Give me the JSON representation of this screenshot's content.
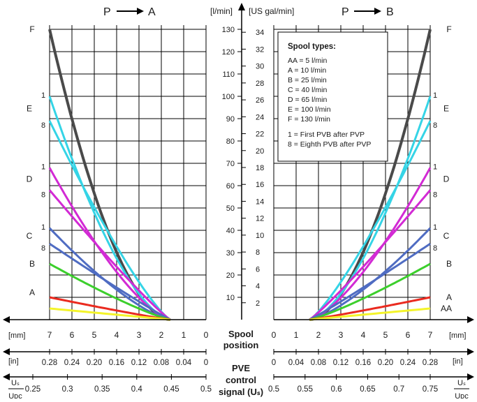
{
  "headers": {
    "left_title_from": "P",
    "left_title_to": "A",
    "right_title_from": "P",
    "right_title_to": "B",
    "unit_lmin": "[l/min]",
    "unit_usgal": "[US gal/min]"
  },
  "legend": {
    "title": "Spool types:",
    "lines": [
      "AA = 5 l/min",
      "A = 10 l/min",
      "B = 25 l/min",
      "C = 40 l/min",
      "D = 65 l/min",
      "E = 100 l/min",
      "F = 130 l/min",
      "1 = First PVB after PVP",
      "8 = Eighth PVB after PVP"
    ]
  },
  "bottom": {
    "mm_unit": "[mm]",
    "in_unit": "[in]",
    "spool_label": [
      "Spool",
      "position"
    ],
    "pve_label": [
      "PVE",
      "control",
      "signal (Uₛ)"
    ],
    "ratio_num": "Uₛ",
    "ratio_den": "Uᴅᴄ",
    "left_mm_ticks": [
      "7",
      "6",
      "5",
      "4",
      "3",
      "2",
      "1",
      "0"
    ],
    "right_mm_ticks": [
      "0",
      "1",
      "2",
      "3",
      "4",
      "5",
      "6",
      "7"
    ],
    "left_in_ticks": [
      "0.28",
      "0.24",
      "0.20",
      "0.16",
      "0.12",
      "0.08",
      "0.04",
      "0"
    ],
    "right_in_ticks": [
      "0",
      "0.04",
      "0.08",
      "0.12",
      "0.16",
      "0.20",
      "0.24",
      "0.28"
    ],
    "left_ratio_ticks": [
      "0.25",
      "0.3",
      "0.35",
      "0.4",
      "0.45",
      "0.5"
    ],
    "right_ratio_ticks": [
      "0.5",
      "0.55",
      "0.6",
      "0.65",
      "0.7",
      "0.75"
    ]
  },
  "chart_data": {
    "type": "line",
    "title": "",
    "xlabel": "Spool position [mm]",
    "ylabel": "[l/min]",
    "ylim": [
      0,
      135
    ],
    "y_ticks_lmin": [
      10,
      20,
      30,
      40,
      50,
      60,
      70,
      80,
      90,
      100,
      110,
      120,
      130
    ],
    "y_ticks_usgal": [
      2,
      4,
      6,
      8,
      10,
      12,
      14,
      16,
      18,
      20,
      22,
      24,
      26,
      28,
      30,
      32,
      34
    ],
    "panels": [
      {
        "name": "P → A",
        "x_range_mm": [
          7,
          0
        ]
      },
      {
        "name": "P → B",
        "x_range_mm": [
          0,
          7
        ]
      }
    ],
    "series": [
      {
        "name": "F",
        "color": "#4a4a4a",
        "flow_at_7mm": 130,
        "start_mm": 1.6,
        "labels_left": [
          "F"
        ],
        "labels_right": [
          "F"
        ]
      },
      {
        "name": "E",
        "color": "#35d4e6",
        "band": [
          89,
          100
        ],
        "start_mm": 1.6,
        "labels_left": [
          "1",
          "E",
          "8"
        ],
        "labels_right": [
          "1",
          "E",
          "8"
        ]
      },
      {
        "name": "D",
        "color": "#d22ad4",
        "band": [
          58,
          68
        ],
        "start_mm": 1.6,
        "labels_left": [
          "1",
          "D",
          "8"
        ],
        "labels_right": [
          "1",
          "D",
          "8"
        ]
      },
      {
        "name": "C",
        "color": "#4f6cc2",
        "band": [
          34,
          41
        ],
        "start_mm": 1.6,
        "labels_left": [
          "1",
          "C",
          "8"
        ],
        "labels_right": [
          "1",
          "C",
          "8"
        ]
      },
      {
        "name": "B",
        "color": "#3ccf2c",
        "flow_at_7mm": 25,
        "start_mm": 1.6,
        "labels_left": [
          "B"
        ],
        "labels_right": [
          "B"
        ]
      },
      {
        "name": "A",
        "color": "#ea2a1f",
        "flow_at_7mm": 10,
        "start_mm": 1.6,
        "labels_left": [
          "A"
        ],
        "labels_right": [
          "A"
        ]
      },
      {
        "name": "AA",
        "color": "#f4f42a",
        "flow_at_7mm": 5,
        "start_mm": 1.6,
        "labels_left": [],
        "labels_right": [
          "AA"
        ]
      }
    ]
  }
}
